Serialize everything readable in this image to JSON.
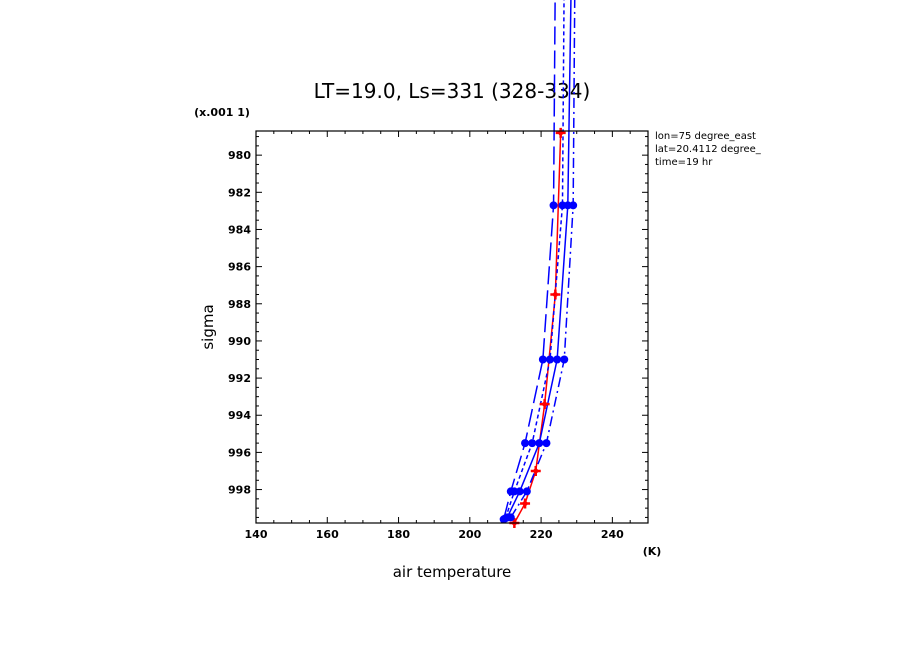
{
  "chart_data": {
    "type": "line",
    "title": "LT=19.0, Ls=331 (328-334)",
    "xlabel": "air temperature",
    "xunits": "(K)",
    "ylabel": "sigma",
    "yscale_note": "(x.001 1)",
    "xlim": [
      140,
      250
    ],
    "ylim": [
      999.8,
      978.7
    ],
    "y_inverted": true,
    "x_ticks": [
      140,
      160,
      180,
      200,
      220,
      240
    ],
    "y_ticks": [
      980,
      982,
      984,
      986,
      988,
      990,
      992,
      994,
      996,
      998
    ],
    "annotations": [
      "lon=75 degree_east",
      "lat=20.4112 degree_",
      "time=19 hr"
    ],
    "grid": false,
    "series": [
      {
        "color": "#ff0000",
        "style": "solid",
        "markers": true,
        "points": [
          [
            212.5,
            999.8
          ],
          [
            215.5,
            998.75
          ],
          [
            218.5,
            997.0
          ],
          [
            221.0,
            993.4
          ],
          [
            224.0,
            987.5
          ],
          [
            225.5,
            978.8
          ]
        ]
      },
      {
        "color": "#0000ff",
        "style": "solid",
        "markers": true,
        "points": [
          [
            210.5,
            999.5
          ],
          [
            214.0,
            998.1
          ],
          [
            219.5,
            995.5
          ],
          [
            224.5,
            991.0
          ],
          [
            227.5,
            982.7
          ],
          [
            228.5,
            970.0
          ]
        ]
      },
      {
        "color": "#0000ff",
        "style": "long-dash",
        "markers": true,
        "points": [
          [
            209.5,
            999.6
          ],
          [
            211.5,
            998.1
          ],
          [
            215.5,
            995.5
          ],
          [
            220.5,
            991.0
          ],
          [
            223.5,
            982.7
          ],
          [
            224.0,
            970.0
          ]
        ]
      },
      {
        "color": "#0000ff",
        "style": "short-dash",
        "markers": true,
        "points": [
          [
            210.0,
            999.55
          ],
          [
            212.5,
            998.1
          ],
          [
            217.5,
            995.5
          ],
          [
            222.5,
            991.0
          ],
          [
            226.0,
            982.7
          ],
          [
            226.5,
            970.0
          ]
        ]
      },
      {
        "color": "#0000ff",
        "style": "dash-dot",
        "markers": true,
        "points": [
          [
            211.5,
            999.5
          ],
          [
            216.0,
            998.1
          ],
          [
            221.5,
            995.5
          ],
          [
            226.5,
            991.0
          ],
          [
            229.0,
            982.7
          ],
          [
            229.5,
            970.0
          ]
        ]
      }
    ]
  }
}
